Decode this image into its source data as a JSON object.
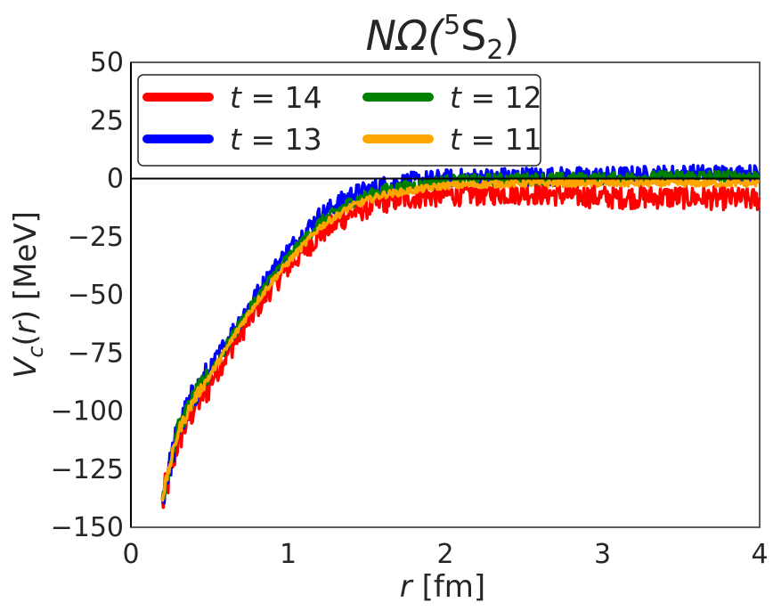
{
  "chart_data": {
    "type": "line",
    "title": {
      "main": "NΩ(",
      "sup": "5",
      "s": "S",
      "sub": "2",
      "close": ")"
    },
    "xlabel": {
      "var": "r",
      "unit": " [fm]"
    },
    "ylabel": {
      "var": "V",
      "sub": "c",
      "open": "(",
      "arg": "r",
      "close": ")",
      "unit": " [MeV]"
    },
    "xlim": [
      0,
      4
    ],
    "ylim": [
      -150,
      50
    ],
    "xticks": [
      0,
      1,
      2,
      3,
      4
    ],
    "xtick_labels": [
      "0",
      "1",
      "2",
      "3",
      "4"
    ],
    "yticks": [
      50,
      25,
      0,
      -25,
      -50,
      -75,
      -100,
      -125,
      -150
    ],
    "ytick_labels": [
      "50",
      "25",
      "0",
      "−25",
      "−50",
      "−75",
      "−100",
      "−125",
      "−150"
    ],
    "reference_lines": {
      "h": 0,
      "v": 0
    },
    "legend": {
      "location": "upper-left",
      "ncol": 2
    },
    "series": [
      {
        "name": "t = 14",
        "label_var": "t",
        "label_val": "= 14",
        "color": "#ff0000",
        "x": [
          0.2,
          0.3,
          0.4,
          0.5,
          0.6,
          0.7,
          0.8,
          0.9,
          1.0,
          1.2,
          1.4,
          1.6,
          1.8,
          2.0,
          2.5,
          3.0,
          3.5,
          4.0
        ],
        "y": [
          -140,
          -112,
          -98,
          -88,
          -77,
          -66,
          -56,
          -46,
          -38,
          -24,
          -15,
          -10,
          -8,
          -7,
          -6,
          -8,
          -8,
          -9
        ],
        "noise": 5
      },
      {
        "name": "t = 13",
        "label_var": "t",
        "label_val": "= 13",
        "color": "#0000ff",
        "x": [
          0.2,
          0.3,
          0.4,
          0.5,
          0.6,
          0.7,
          0.8,
          0.9,
          1.0,
          1.2,
          1.4,
          1.6,
          1.8,
          2.0,
          2.5,
          3.0,
          3.5,
          4.0
        ],
        "y": [
          -138,
          -108,
          -93,
          -83,
          -71,
          -60,
          -50,
          -40,
          -31,
          -16,
          -7,
          -3,
          -1,
          0,
          1,
          1,
          2,
          2
        ],
        "noise": 4
      },
      {
        "name": "t = 12",
        "label_var": "t",
        "label_val": "= 12",
        "color": "#008000",
        "x": [
          0.2,
          0.3,
          0.4,
          0.5,
          0.6,
          0.7,
          0.8,
          0.9,
          1.0,
          1.2,
          1.4,
          1.6,
          1.8,
          2.0,
          2.5,
          3.0,
          3.5,
          4.0
        ],
        "y": [
          -137,
          -108,
          -94,
          -84,
          -73,
          -62,
          -52,
          -42,
          -34,
          -19,
          -10,
          -5,
          -3,
          -1,
          0,
          0,
          1,
          1
        ],
        "noise": 2.5
      },
      {
        "name": "t = 11",
        "label_var": "t",
        "label_val": "= 11",
        "color": "#ffa500",
        "x": [
          0.2,
          0.3,
          0.4,
          0.5,
          0.6,
          0.7,
          0.8,
          0.9,
          1.0,
          1.2,
          1.4,
          1.6,
          1.8,
          2.0,
          2.5,
          3.0,
          3.5,
          4.0
        ],
        "y": [
          -137,
          -109,
          -95,
          -85,
          -74,
          -63,
          -53,
          -44,
          -36,
          -21,
          -12,
          -7,
          -5,
          -3,
          -2,
          -2,
          -2,
          -2
        ],
        "noise": 1.5
      }
    ]
  }
}
